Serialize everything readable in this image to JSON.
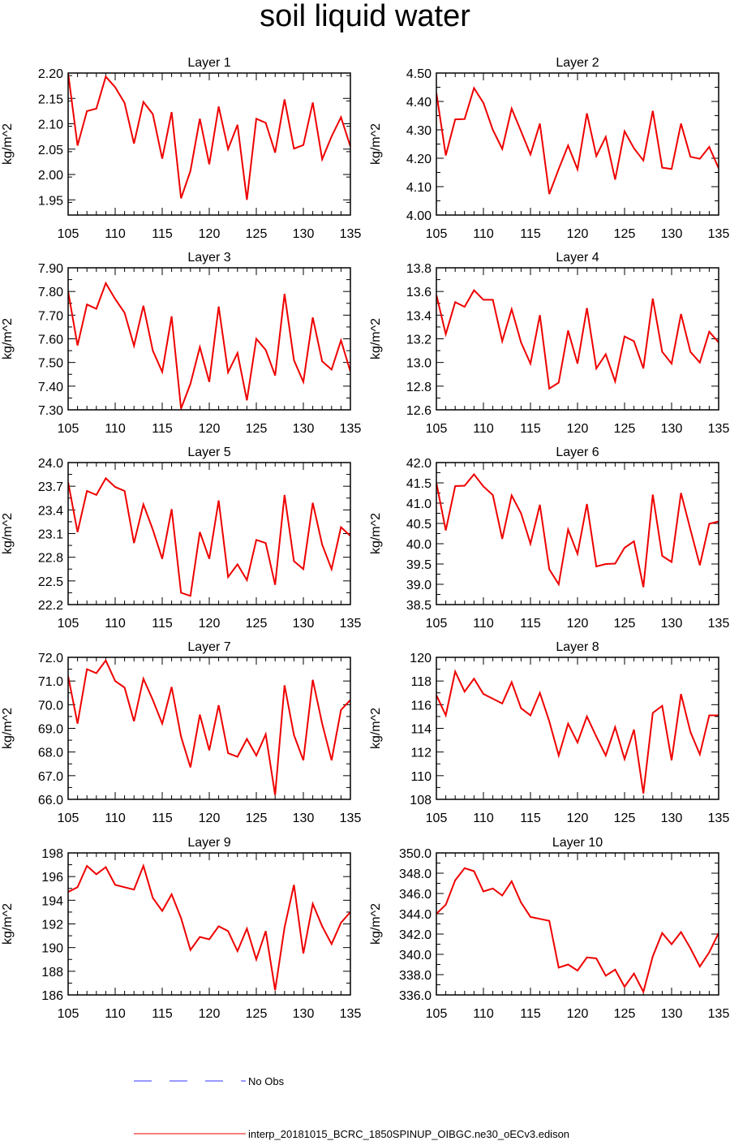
{
  "title": "soil liquid water",
  "colors": {
    "model_line": "#ee0000",
    "obs_line": "#3333ff",
    "axis": "#000000"
  },
  "legend": {
    "obs_label": "No Obs",
    "model_label": "interp_20181015_BCRC_1850SPINUP_OIBGC.ne30_oECv3.edison"
  },
  "chart_data": [
    {
      "type": "line",
      "title": "Layer 1",
      "ylabel": "kg/m^2",
      "xlim": [
        105,
        135
      ],
      "ylim": [
        1.92,
        2.2
      ],
      "xticks": [
        105,
        110,
        115,
        120,
        125,
        130,
        135
      ],
      "yticks": [
        1.95,
        2.0,
        2.05,
        2.1,
        2.15,
        2.2
      ],
      "ydecimals": 2,
      "x": [
        105,
        106,
        107,
        108,
        109,
        110,
        111,
        112,
        113,
        114,
        115,
        116,
        117,
        118,
        119,
        120,
        121,
        122,
        123,
        124,
        125,
        126,
        127,
        128,
        129,
        130,
        131,
        132,
        133,
        134,
        135
      ],
      "series": [
        {
          "values": [
            2.2,
            2.057,
            2.125,
            2.13,
            2.193,
            2.172,
            2.141,
            2.061,
            2.143,
            2.119,
            2.031,
            2.123,
            1.953,
            2.007,
            2.11,
            2.02,
            2.134,
            2.05,
            2.098,
            1.95,
            2.11,
            2.102,
            2.043,
            2.148,
            2.051,
            2.058,
            2.142,
            2.03,
            2.075,
            2.113,
            2.055
          ]
        }
      ]
    },
    {
      "type": "line",
      "title": "Layer 2",
      "ylabel": "kg/m^2",
      "xlim": [
        105,
        135
      ],
      "ylim": [
        4.0,
        4.5
      ],
      "xticks": [
        105,
        110,
        115,
        120,
        125,
        130,
        135
      ],
      "yticks": [
        4.0,
        4.1,
        4.2,
        4.3,
        4.4,
        4.5
      ],
      "ydecimals": 2,
      "x": [
        105,
        106,
        107,
        108,
        109,
        110,
        111,
        112,
        113,
        114,
        115,
        116,
        117,
        118,
        119,
        120,
        121,
        122,
        123,
        124,
        125,
        126,
        127,
        128,
        129,
        130,
        131,
        132,
        133,
        134,
        135
      ],
      "series": [
        {
          "values": [
            4.43,
            4.21,
            4.337,
            4.338,
            4.447,
            4.395,
            4.3,
            4.233,
            4.375,
            4.295,
            4.213,
            4.322,
            4.074,
            4.162,
            4.245,
            4.161,
            4.358,
            4.208,
            4.275,
            4.125,
            4.295,
            4.235,
            4.192,
            4.367,
            4.167,
            4.162,
            4.322,
            4.205,
            4.198,
            4.24,
            4.165
          ]
        }
      ]
    },
    {
      "type": "line",
      "title": "Layer 3",
      "ylabel": "kg/m^2",
      "xlim": [
        105,
        135
      ],
      "ylim": [
        7.3,
        7.9
      ],
      "xticks": [
        105,
        110,
        115,
        120,
        125,
        130,
        135
      ],
      "yticks": [
        7.3,
        7.4,
        7.5,
        7.6,
        7.7,
        7.8,
        7.9
      ],
      "ydecimals": 2,
      "x": [
        105,
        106,
        107,
        108,
        109,
        110,
        111,
        112,
        113,
        114,
        115,
        116,
        117,
        118,
        119,
        120,
        121,
        122,
        123,
        124,
        125,
        126,
        127,
        128,
        129,
        130,
        131,
        132,
        133,
        134,
        135
      ],
      "series": [
        {
          "values": [
            7.8,
            7.572,
            7.745,
            7.727,
            7.835,
            7.768,
            7.71,
            7.57,
            7.74,
            7.55,
            7.46,
            7.695,
            7.305,
            7.41,
            7.565,
            7.418,
            7.736,
            7.458,
            7.54,
            7.34,
            7.6,
            7.553,
            7.445,
            7.79,
            7.51,
            7.418,
            7.69,
            7.505,
            7.47,
            7.593,
            7.462
          ]
        }
      ]
    },
    {
      "type": "line",
      "title": "Layer 4",
      "ylabel": "kg/m^2",
      "xlim": [
        105,
        135
      ],
      "ylim": [
        12.6,
        13.8
      ],
      "xticks": [
        105,
        110,
        115,
        120,
        125,
        130,
        135
      ],
      "yticks": [
        12.6,
        12.8,
        13.0,
        13.2,
        13.4,
        13.6,
        13.8
      ],
      "ydecimals": 1,
      "x": [
        105,
        106,
        107,
        108,
        109,
        110,
        111,
        112,
        113,
        114,
        115,
        116,
        117,
        118,
        119,
        120,
        121,
        122,
        123,
        124,
        125,
        126,
        127,
        128,
        129,
        130,
        131,
        132,
        133,
        134,
        135
      ],
      "series": [
        {
          "values": [
            13.57,
            13.24,
            13.51,
            13.47,
            13.61,
            13.53,
            13.53,
            13.18,
            13.45,
            13.17,
            12.99,
            13.4,
            12.78,
            12.83,
            13.27,
            12.99,
            13.46,
            12.95,
            13.07,
            12.84,
            13.22,
            13.18,
            12.95,
            13.54,
            13.09,
            12.99,
            13.41,
            13.09,
            13.0,
            13.26,
            13.17
          ]
        }
      ]
    },
    {
      "type": "line",
      "title": "Layer 5",
      "ylabel": "kg/m^2",
      "xlim": [
        105,
        135
      ],
      "ylim": [
        22.2,
        24.0
      ],
      "xticks": [
        105,
        110,
        115,
        120,
        125,
        130,
        135
      ],
      "yticks": [
        22.2,
        22.5,
        22.8,
        23.1,
        23.4,
        23.7,
        24.0
      ],
      "ydecimals": 1,
      "x": [
        105,
        106,
        107,
        108,
        109,
        110,
        111,
        112,
        113,
        114,
        115,
        116,
        117,
        118,
        119,
        120,
        121,
        122,
        123,
        124,
        125,
        126,
        127,
        128,
        129,
        130,
        131,
        132,
        133,
        134,
        135
      ],
      "series": [
        {
          "values": [
            23.75,
            23.12,
            23.64,
            23.59,
            23.8,
            23.69,
            23.64,
            22.98,
            23.47,
            23.15,
            22.78,
            23.41,
            22.35,
            22.31,
            23.12,
            22.78,
            23.52,
            22.55,
            22.71,
            22.51,
            23.02,
            22.98,
            22.45,
            23.59,
            22.75,
            22.65,
            23.49,
            22.96,
            22.65,
            23.18,
            23.07
          ]
        }
      ]
    },
    {
      "type": "line",
      "title": "Layer 6",
      "ylabel": "kg/m^2",
      "xlim": [
        105,
        135
      ],
      "ylim": [
        38.5,
        42.0
      ],
      "xticks": [
        105,
        110,
        115,
        120,
        125,
        130,
        135
      ],
      "yticks": [
        38.5,
        39.0,
        39.5,
        40.0,
        40.5,
        41.0,
        41.5,
        42.0
      ],
      "ydecimals": 1,
      "x": [
        105,
        106,
        107,
        108,
        109,
        110,
        111,
        112,
        113,
        114,
        115,
        116,
        117,
        118,
        119,
        120,
        121,
        122,
        123,
        124,
        125,
        126,
        127,
        128,
        129,
        130,
        131,
        132,
        133,
        134,
        135
      ],
      "series": [
        {
          "values": [
            41.5,
            40.33,
            41.42,
            41.43,
            41.71,
            41.41,
            41.2,
            40.12,
            41.19,
            40.75,
            40.0,
            40.96,
            39.37,
            39.0,
            40.35,
            39.75,
            40.98,
            39.44,
            39.5,
            39.51,
            39.9,
            40.06,
            38.93,
            41.21,
            39.7,
            39.55,
            41.25,
            40.35,
            39.47,
            40.49,
            40.55
          ]
        }
      ]
    },
    {
      "type": "line",
      "title": "Layer 7",
      "ylabel": "kg/m^2",
      "xlim": [
        105,
        135
      ],
      "ylim": [
        66.0,
        72.0
      ],
      "xticks": [
        105,
        110,
        115,
        120,
        125,
        130,
        135
      ],
      "yticks": [
        66.0,
        67.0,
        68.0,
        69.0,
        70.0,
        71.0,
        72.0
      ],
      "ydecimals": 1,
      "x": [
        105,
        106,
        107,
        108,
        109,
        110,
        111,
        112,
        113,
        114,
        115,
        116,
        117,
        118,
        119,
        120,
        121,
        122,
        123,
        124,
        125,
        126,
        127,
        128,
        129,
        130,
        131,
        132,
        133,
        134,
        135
      ],
      "series": [
        {
          "values": [
            71.2,
            69.2,
            71.5,
            71.33,
            71.87,
            71.0,
            70.72,
            69.3,
            71.1,
            70.2,
            69.2,
            70.75,
            68.65,
            67.35,
            69.58,
            68.07,
            69.98,
            67.95,
            67.8,
            68.55,
            67.85,
            68.75,
            66.18,
            70.82,
            68.72,
            67.65,
            71.05,
            69.2,
            67.65,
            69.78,
            70.2
          ]
        }
      ]
    },
    {
      "type": "line",
      "title": "Layer 8",
      "ylabel": "kg/m^2",
      "xlim": [
        105,
        135
      ],
      "ylim": [
        108,
        120
      ],
      "xticks": [
        105,
        110,
        115,
        120,
        125,
        130,
        135
      ],
      "yticks": [
        108,
        110,
        112,
        114,
        116,
        118,
        120
      ],
      "ydecimals": 0,
      "x": [
        105,
        106,
        107,
        108,
        109,
        110,
        111,
        112,
        113,
        114,
        115,
        116,
        117,
        118,
        119,
        120,
        121,
        122,
        123,
        124,
        125,
        126,
        127,
        128,
        129,
        130,
        131,
        132,
        133,
        134,
        135
      ],
      "series": [
        {
          "values": [
            116.8,
            115.1,
            118.8,
            117.1,
            118.2,
            116.9,
            116.5,
            116.1,
            117.9,
            115.7,
            115.1,
            117.0,
            114.6,
            111.7,
            114.4,
            112.8,
            115.0,
            113.3,
            111.7,
            114.1,
            111.4,
            113.9,
            108.5,
            115.3,
            115.9,
            111.3,
            116.9,
            113.7,
            111.8,
            115.1,
            115.1
          ]
        }
      ]
    },
    {
      "type": "line",
      "title": "Layer 9",
      "ylabel": "kg/m^2",
      "xlim": [
        105,
        135
      ],
      "ylim": [
        186,
        198
      ],
      "xticks": [
        105,
        110,
        115,
        120,
        125,
        130,
        135
      ],
      "yticks": [
        186,
        188,
        190,
        192,
        194,
        196,
        198
      ],
      "ydecimals": 0,
      "x": [
        105,
        106,
        107,
        108,
        109,
        110,
        111,
        112,
        113,
        114,
        115,
        116,
        117,
        118,
        119,
        120,
        121,
        122,
        123,
        124,
        125,
        126,
        127,
        128,
        129,
        130,
        131,
        132,
        133,
        134,
        135
      ],
      "series": [
        {
          "values": [
            194.7,
            195.1,
            196.9,
            196.2,
            196.8,
            195.3,
            195.1,
            194.9,
            196.9,
            194.2,
            193.1,
            194.5,
            192.5,
            189.8,
            190.9,
            190.7,
            191.8,
            191.4,
            189.7,
            191.6,
            189.0,
            191.4,
            186.4,
            191.7,
            195.3,
            189.5,
            193.7,
            191.8,
            190.3,
            192.1,
            193.0
          ]
        }
      ]
    },
    {
      "type": "line",
      "title": "Layer 10",
      "ylabel": "kg/m^2",
      "xlim": [
        105,
        135
      ],
      "ylim": [
        336.0,
        350.0
      ],
      "xticks": [
        105,
        110,
        115,
        120,
        125,
        130,
        135
      ],
      "yticks": [
        336.0,
        338.0,
        340.0,
        342.0,
        344.0,
        346.0,
        348.0,
        350.0
      ],
      "ydecimals": 1,
      "x": [
        105,
        106,
        107,
        108,
        109,
        110,
        111,
        112,
        113,
        114,
        115,
        116,
        117,
        118,
        119,
        120,
        121,
        122,
        123,
        124,
        125,
        126,
        127,
        128,
        129,
        130,
        131,
        132,
        133,
        134,
        135
      ],
      "series": [
        {
          "values": [
            344.0,
            344.9,
            347.3,
            348.5,
            348.2,
            346.2,
            346.5,
            345.8,
            347.2,
            345.1,
            343.7,
            343.5,
            343.3,
            338.7,
            339.0,
            338.4,
            339.7,
            339.6,
            337.9,
            338.5,
            336.8,
            338.1,
            336.3,
            339.8,
            342.1,
            341.0,
            342.2,
            340.6,
            338.8,
            340.2,
            342.1
          ]
        }
      ]
    }
  ]
}
